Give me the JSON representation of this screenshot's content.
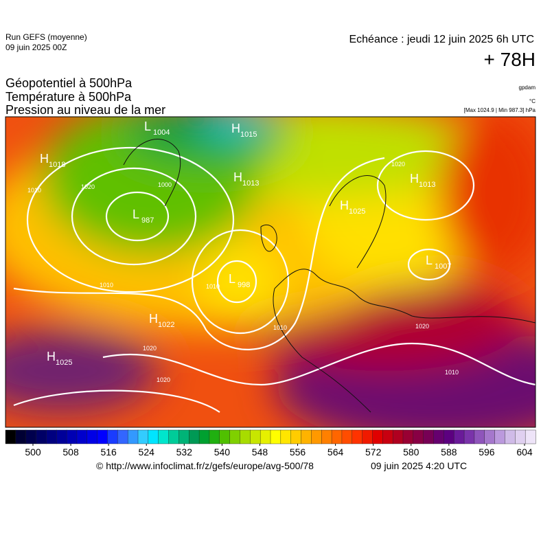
{
  "header": {
    "run": "Run GEFS (moyenne)",
    "run_date": "09 juin 2025 00Z",
    "echeance": "Echéance : jeudi 12 juin 2025 6h UTC",
    "lead": "+ 78H",
    "fields": [
      "Géopotentiel à 500hPa",
      "Température à 500hPa",
      "Pression au niveau de la mer"
    ],
    "unit_geopotential": "gpdam",
    "unit_temperature": "°C",
    "pressure_range": "[Max 1024.9 | Min 987.3] hPa"
  },
  "centers": [
    {
      "kind": "H",
      "value": 1015
    },
    {
      "kind": "L",
      "value": 1004
    },
    {
      "kind": "H",
      "value": 1018
    },
    {
      "kind": "H",
      "value": 1013
    },
    {
      "kind": "L",
      "value": 987
    },
    {
      "kind": "L",
      "value": 998
    },
    {
      "kind": "H",
      "value": 1022
    },
    {
      "kind": "H",
      "value": 1025
    },
    {
      "kind": "H",
      "value": 1025
    },
    {
      "kind": "H",
      "value": 1013
    },
    {
      "kind": "L",
      "value": 1007
    }
  ],
  "isobar_labels": [
    1000,
    1010,
    1020,
    1010,
    1010,
    1020,
    1020,
    1010,
    1020,
    1020,
    1010
  ],
  "colorbar": {
    "lim": [
      500,
      604
    ],
    "ticks": [
      500,
      508,
      516,
      524,
      532,
      540,
      548,
      556,
      564,
      572,
      580,
      588,
      596,
      604
    ],
    "colors": [
      "#000000",
      "#000033",
      "#00004d",
      "#000066",
      "#000080",
      "#000099",
      "#0000b3",
      "#0000cc",
      "#0000e6",
      "#0000ff",
      "#1a3cff",
      "#3366ff",
      "#3399ff",
      "#33ccff",
      "#00e5ff",
      "#00e6cc",
      "#00cc99",
      "#00b377",
      "#009955",
      "#00a030",
      "#20b010",
      "#50c000",
      "#80d000",
      "#a8dc00",
      "#c8e600",
      "#e6f000",
      "#ffff00",
      "#ffe600",
      "#ffcc00",
      "#ffb300",
      "#ff9900",
      "#ff8000",
      "#ff6600",
      "#ff4d00",
      "#ff3300",
      "#f01a00",
      "#e00000",
      "#c80010",
      "#b00020",
      "#990033",
      "#880044",
      "#770055",
      "#66006f",
      "#5c0080",
      "#6a1a99",
      "#7a33aa",
      "#8f55bb",
      "#a577cc",
      "#bb99dd",
      "#d0bbe8",
      "#e0d0f0",
      "#eee4f8"
    ]
  },
  "footer": {
    "url": "© http://www.infoclimat.fr/z/gefs/europe/avg-500/78",
    "time": "09 juin 2025  4:20 UTC"
  }
}
